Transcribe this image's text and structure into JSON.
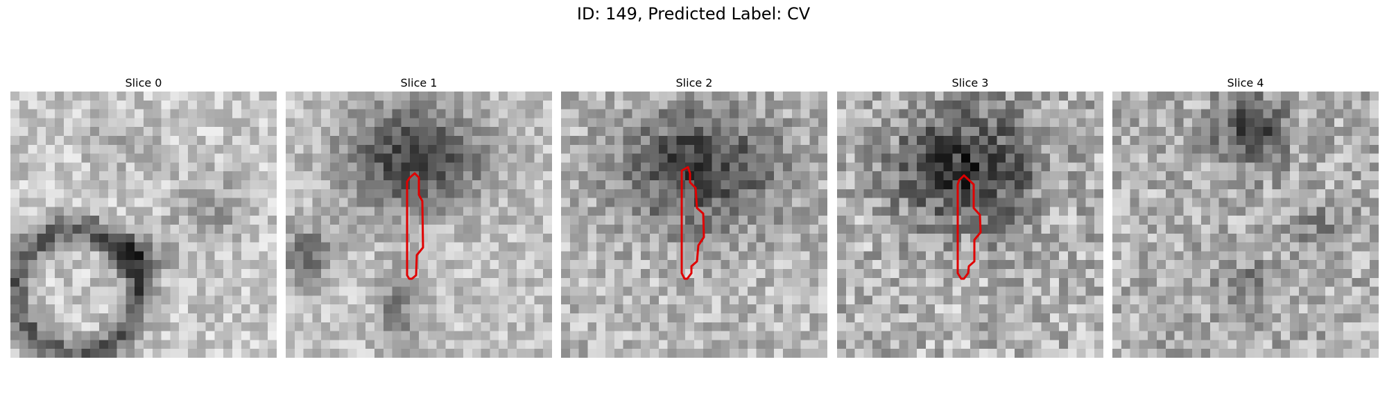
{
  "figure": {
    "title": "ID: 149, Predicted Label: CV"
  },
  "panels": [
    {
      "title": "Slice 0",
      "has_contour": false
    },
    {
      "title": "Slice 1",
      "has_contour": true
    },
    {
      "title": "Slice 2",
      "has_contour": true
    },
    {
      "title": "Slice 3",
      "has_contour": true
    },
    {
      "title": "Slice 4",
      "has_contour": false
    }
  ],
  "colors": {
    "contour": "#e00000",
    "background": "#ffffff"
  },
  "colormap": "gray"
}
